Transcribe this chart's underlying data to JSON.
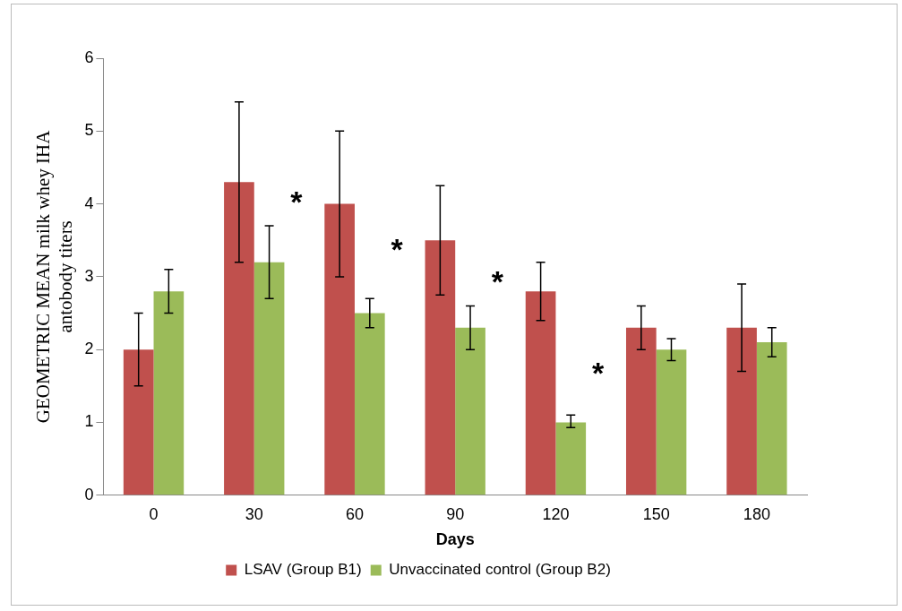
{
  "chart_data": {
    "type": "bar",
    "xlabel": "Days",
    "ylabel": "GEOMETRIC MEAN milk whey IHA antobody titers",
    "categories": [
      "0",
      "30",
      "60",
      "90",
      "120",
      "150",
      "180"
    ],
    "series": [
      {
        "name": "LSAV (Group B1)",
        "color": "#c0504d",
        "values": [
          2.0,
          4.3,
          4.0,
          3.5,
          2.8,
          2.3,
          2.3
        ],
        "errors": [
          [
            1.5,
            2.5
          ],
          [
            3.2,
            5.4
          ],
          [
            3.0,
            5.0
          ],
          [
            2.75,
            4.25
          ],
          [
            2.4,
            3.2
          ],
          [
            2.0,
            2.6
          ],
          [
            1.7,
            2.9
          ]
        ]
      },
      {
        "name": "Unvaccinated control (Group B2)",
        "color": "#9bbb59",
        "values": [
          2.8,
          3.2,
          2.5,
          2.3,
          1.0,
          2.0,
          2.1
        ],
        "errors": [
          [
            2.5,
            3.1
          ],
          [
            2.7,
            3.7
          ],
          [
            2.3,
            2.7
          ],
          [
            2.0,
            2.6
          ],
          [
            0.93,
            1.1
          ],
          [
            1.85,
            2.15
          ],
          [
            1.9,
            2.3
          ]
        ]
      }
    ],
    "ylim": [
      0,
      6
    ],
    "yticks": [
      0,
      1,
      2,
      3,
      4,
      5,
      6
    ],
    "grid": false,
    "legend": "bottom",
    "annotations": [
      {
        "text": "*",
        "x": "30",
        "y": 4.1
      },
      {
        "text": "*",
        "x": "60",
        "y": 3.45
      },
      {
        "text": "*",
        "x": "90",
        "y": 3.0
      },
      {
        "text": "*",
        "x": "120",
        "y": 1.75
      }
    ]
  }
}
